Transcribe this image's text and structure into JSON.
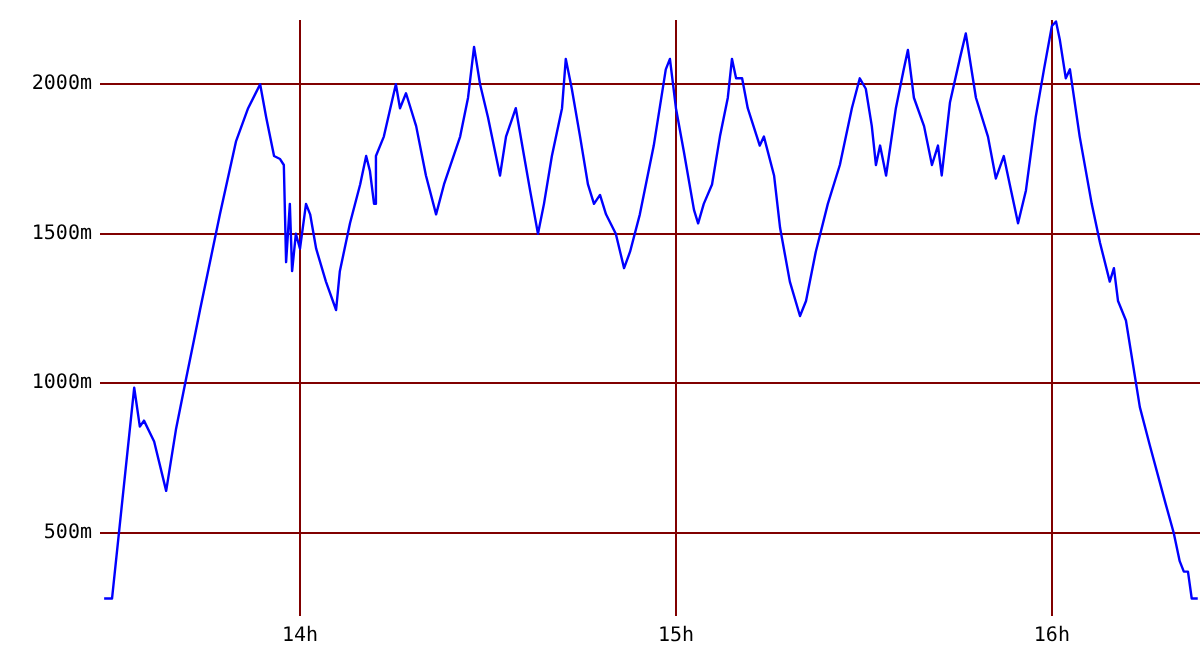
{
  "chart_data": {
    "type": "line",
    "x": [
      13.479,
      13.5,
      13.559,
      13.574,
      13.585,
      13.612,
      13.644,
      13.67,
      13.697,
      13.718,
      13.734,
      13.787,
      13.83,
      13.862,
      13.894,
      13.91,
      13.931,
      13.947,
      13.957,
      13.963,
      13.973,
      13.979,
      13.989,
      14.0,
      14.016,
      14.027,
      14.043,
      14.069,
      14.096,
      14.106,
      14.133,
      14.16,
      14.176,
      14.186,
      14.197,
      14.202,
      14.223,
      14.255,
      14.266,
      14.282,
      14.309,
      14.335,
      14.362,
      14.383,
      14.426,
      14.447,
      14.463,
      14.479,
      14.5,
      14.532,
      14.548,
      14.574,
      14.596,
      14.612,
      14.633,
      14.649,
      14.67,
      14.697,
      14.707,
      14.723,
      14.745,
      14.766,
      14.782,
      14.798,
      14.814,
      14.84,
      14.862,
      14.878,
      14.904,
      14.941,
      14.973,
      14.984,
      15.0,
      15.021,
      15.048,
      15.059,
      15.074,
      15.096,
      15.117,
      15.138,
      15.149,
      15.16,
      15.176,
      15.191,
      15.223,
      15.234,
      15.261,
      15.277,
      15.303,
      15.33,
      15.346,
      15.372,
      15.404,
      15.436,
      15.468,
      15.489,
      15.505,
      15.521,
      15.532,
      15.543,
      15.559,
      15.585,
      15.606,
      15.617,
      15.633,
      15.66,
      15.681,
      15.697,
      15.707,
      15.729,
      15.755,
      15.771,
      15.798,
      15.83,
      15.851,
      15.872,
      15.888,
      15.91,
      15.931,
      15.957,
      15.979,
      16.0,
      16.011,
      16.021,
      16.037,
      16.048,
      16.074,
      16.106,
      16.128,
      16.154,
      16.165,
      16.176,
      16.197,
      16.234,
      16.261,
      16.303,
      16.324,
      16.34,
      16.351,
      16.362,
      16.372,
      16.388
    ],
    "series": [
      {
        "color": "#0000ff",
        "values": [
          280,
          280,
          985,
          855,
          875,
          805,
          640,
          845,
          1015,
          1145,
          1245,
          1565,
          1810,
          1920,
          2000,
          1890,
          1760,
          1750,
          1730,
          1405,
          1600,
          1375,
          1500,
          1450,
          1600,
          1565,
          1450,
          1340,
          1245,
          1375,
          1535,
          1665,
          1760,
          1710,
          1600,
          1760,
          1825,
          2000,
          1920,
          1970,
          1860,
          1695,
          1565,
          1665,
          1825,
          1955,
          2125,
          2000,
          1890,
          1695,
          1825,
          1920,
          1760,
          1645,
          1500,
          1600,
          1760,
          1920,
          2085,
          1985,
          1825,
          1665,
          1600,
          1630,
          1565,
          1500,
          1385,
          1440,
          1565,
          1795,
          2050,
          2085,
          1920,
          1775,
          1580,
          1535,
          1600,
          1665,
          1825,
          1955,
          2085,
          2020,
          2020,
          1920,
          1795,
          1825,
          1695,
          1520,
          1340,
          1225,
          1275,
          1440,
          1600,
          1730,
          1920,
          2020,
          1985,
          1860,
          1730,
          1795,
          1695,
          1920,
          2050,
          2115,
          1955,
          1860,
          1730,
          1795,
          1695,
          1940,
          2085,
          2170,
          1955,
          1825,
          1685,
          1760,
          1665,
          1535,
          1645,
          1890,
          2050,
          2195,
          2210,
          2150,
          2020,
          2050,
          1825,
          1600,
          1470,
          1340,
          1385,
          1275,
          1210,
          920,
          790,
          595,
          500,
          405,
          370,
          370,
          280,
          280
        ]
      }
    ],
    "xlim": [
      13.468,
      16.394
    ],
    "ylim": [
      275,
      2215
    ],
    "xticks": [
      {
        "value": 14,
        "label": "14h"
      },
      {
        "value": 15,
        "label": "15h"
      },
      {
        "value": 16,
        "label": "16h"
      }
    ],
    "yticks": [
      {
        "value": 500,
        "label": "500m"
      },
      {
        "value": 1000,
        "label": "1000m"
      },
      {
        "value": 1500,
        "label": "1500m"
      },
      {
        "value": 2000,
        "label": "2000m"
      }
    ],
    "grid": true,
    "marker": "none",
    "line_style": "solid"
  }
}
